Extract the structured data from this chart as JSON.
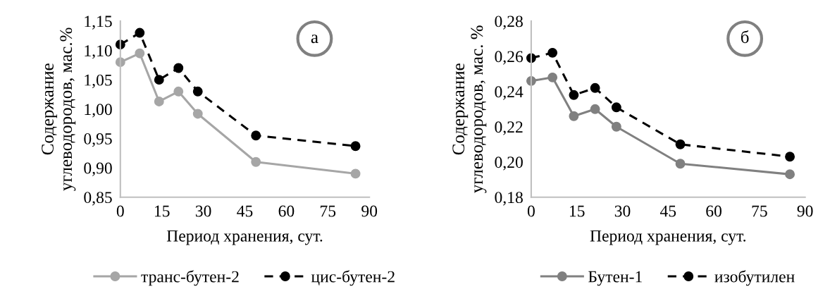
{
  "chart_data": [
    {
      "type": "line",
      "x": [
        0,
        7,
        14,
        21,
        28,
        49,
        85
      ],
      "xlabel": "Период хранения, сут.",
      "ylabel": "Содержание\nуглеводородов, мас.%",
      "xlim": [
        0,
        90
      ],
      "xticks": [
        0,
        15,
        30,
        45,
        60,
        75,
        90
      ],
      "ylim": [
        0.85,
        1.15
      ],
      "yticks": [
        {
          "value": 0.85,
          "label": "0,85"
        },
        {
          "value": 0.9,
          "label": "0,90"
        },
        {
          "value": 0.95,
          "label": "0,95"
        },
        {
          "value": 1.0,
          "label": "1,00"
        },
        {
          "value": 1.05,
          "label": "1,05"
        },
        {
          "value": 1.1,
          "label": "1,10"
        },
        {
          "value": 1.15,
          "label": "1,15"
        }
      ],
      "grid": false,
      "legend": "bottom",
      "marker": "circle",
      "annotations": [
        "а"
      ],
      "series": [
        {
          "name": "транс-бутен-2",
          "color": "#a6a6a6",
          "line_style": "solid",
          "values": [
            1.08,
            1.095,
            1.013,
            1.03,
            0.992,
            0.91,
            0.89
          ]
        },
        {
          "name": "цис-бутен-2",
          "color": "#000000",
          "line_style": "dashed",
          "values": [
            1.11,
            1.13,
            1.05,
            1.07,
            1.03,
            0.955,
            0.937
          ]
        }
      ]
    },
    {
      "type": "line",
      "x": [
        0,
        7,
        14,
        21,
        28,
        49,
        85
      ],
      "xlabel": "Период хранения, сут.",
      "ylabel": "Содержание\nуглеводородов, мас. %",
      "xlim": [
        0,
        90
      ],
      "xticks": [
        0,
        15,
        30,
        45,
        60,
        75,
        90
      ],
      "ylim": [
        0.18,
        0.28
      ],
      "yticks": [
        {
          "value": 0.18,
          "label": "0,18"
        },
        {
          "value": 0.2,
          "label": "0,20"
        },
        {
          "value": 0.22,
          "label": "0,22"
        },
        {
          "value": 0.24,
          "label": "0,24"
        },
        {
          "value": 0.26,
          "label": "0,26"
        },
        {
          "value": 0.28,
          "label": "0,28"
        }
      ],
      "grid": false,
      "legend": "bottom",
      "marker": "circle",
      "annotations": [
        "б"
      ],
      "series": [
        {
          "name": "Бутен-1",
          "color": "#808080",
          "line_style": "solid",
          "values": [
            0.246,
            0.248,
            0.226,
            0.23,
            0.22,
            0.199,
            0.193
          ]
        },
        {
          "name": "изобутилен",
          "color": "#000000",
          "line_style": "dashed",
          "values": [
            0.259,
            0.262,
            0.238,
            0.242,
            0.231,
            0.21,
            0.203
          ]
        }
      ]
    }
  ]
}
